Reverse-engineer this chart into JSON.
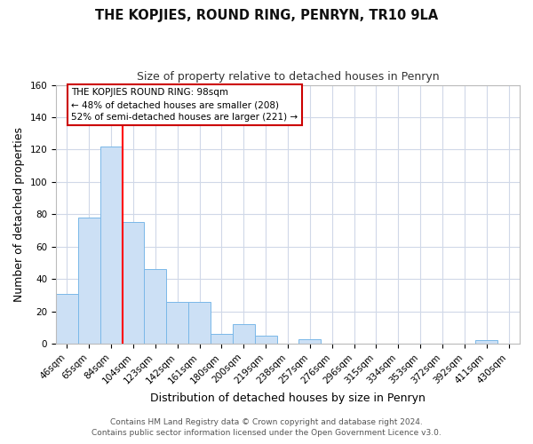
{
  "title": "THE KOPJIES, ROUND RING, PENRYN, TR10 9LA",
  "subtitle": "Size of property relative to detached houses in Penryn",
  "xlabel": "Distribution of detached houses by size in Penryn",
  "ylabel": "Number of detached properties",
  "footer_line1": "Contains HM Land Registry data © Crown copyright and database right 2024.",
  "footer_line2": "Contains public sector information licensed under the Open Government Licence v3.0.",
  "bar_labels": [
    "46sqm",
    "65sqm",
    "84sqm",
    "104sqm",
    "123sqm",
    "142sqm",
    "161sqm",
    "180sqm",
    "200sqm",
    "219sqm",
    "238sqm",
    "257sqm",
    "276sqm",
    "296sqm",
    "315sqm",
    "334sqm",
    "353sqm",
    "372sqm",
    "392sqm",
    "411sqm",
    "430sqm"
  ],
  "bar_values": [
    31,
    78,
    122,
    75,
    46,
    26,
    26,
    6,
    12,
    5,
    0,
    3,
    0,
    0,
    0,
    0,
    0,
    0,
    0,
    2,
    0
  ],
  "bar_color": "#cce0f5",
  "bar_edge_color": "#7ab8e8",
  "redline_x": 2.5,
  "annotation_text": "THE KOPJIES ROUND RING: 98sqm\n← 48% of detached houses are smaller (208)\n52% of semi-detached houses are larger (221) →",
  "annotation_box_edgecolor": "#cc0000",
  "ylim": [
    0,
    160
  ],
  "yticks": [
    0,
    20,
    40,
    60,
    80,
    100,
    120,
    140,
    160
  ],
  "background_color": "#ffffff",
  "grid_color": "#d0d8e8",
  "title_fontsize": 10.5,
  "subtitle_fontsize": 9,
  "ylabel_fontsize": 9,
  "xlabel_fontsize": 9,
  "tick_fontsize": 7.5,
  "footer_fontsize": 6.5
}
